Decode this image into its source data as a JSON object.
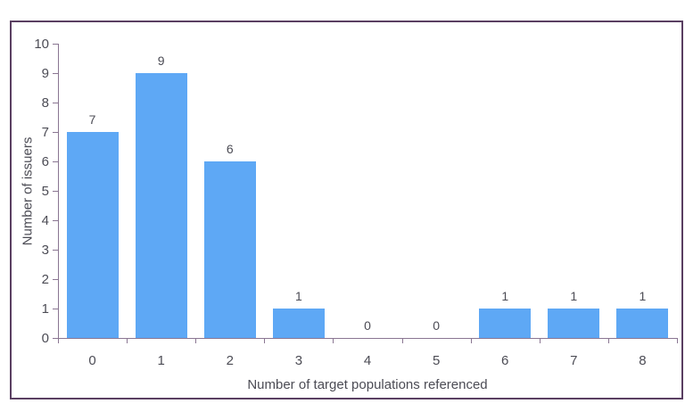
{
  "chart_data": {
    "type": "bar",
    "categories": [
      "0",
      "1",
      "2",
      "3",
      "4",
      "5",
      "6",
      "7",
      "8"
    ],
    "values": [
      7,
      9,
      6,
      1,
      0,
      0,
      1,
      1,
      1
    ],
    "value_labels": [
      "7",
      "9",
      "6",
      "1",
      "0",
      "0",
      "1",
      "1",
      "1"
    ],
    "title": "",
    "xlabel": "Number of target populations referenced",
    "ylabel": "Number of issuers",
    "ylim": [
      0,
      10
    ],
    "yticks": [
      "0",
      "1",
      "2",
      "3",
      "4",
      "5",
      "6",
      "7",
      "8",
      "9",
      "10"
    ],
    "grid": false,
    "legend_position": "none",
    "colors": {
      "bar_fill": "#5ea8f5",
      "frame_border": "#5a3f62",
      "axis_line": "#8a7692",
      "text": "#4c4c55",
      "background": "#ffffff"
    }
  }
}
